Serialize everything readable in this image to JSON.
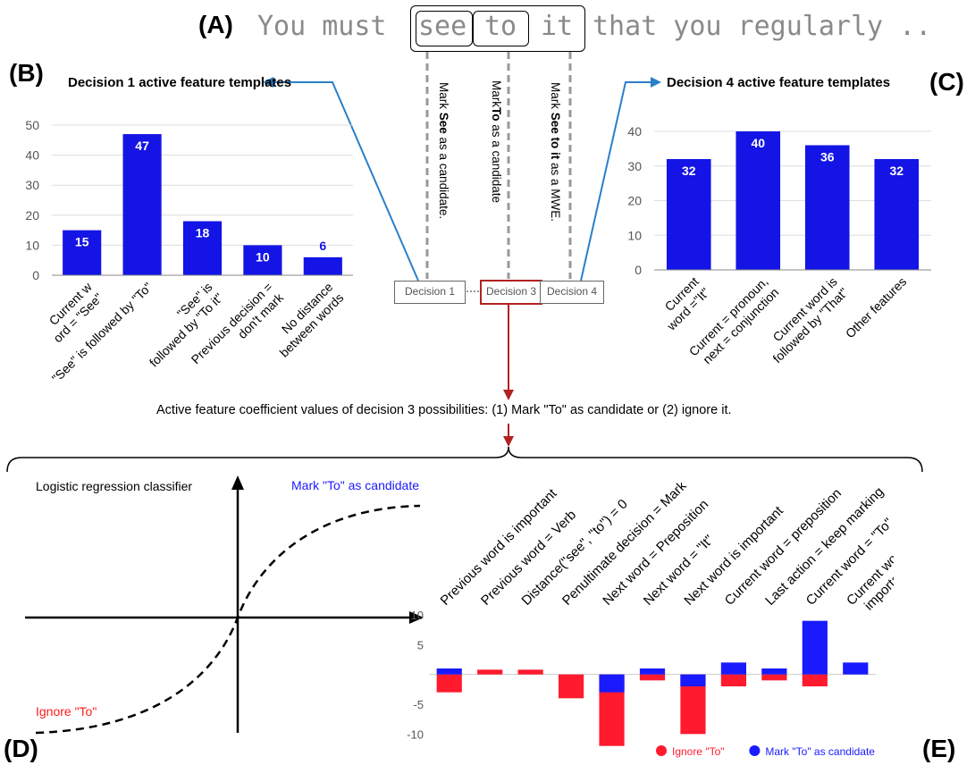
{
  "labels": {
    "A": "(A)",
    "B": "(B)",
    "C": "(C)",
    "D": "(D)",
    "E": "(E)"
  },
  "sentence": {
    "before": "You must",
    "w1": "see",
    "w2": "to",
    "w3": "it",
    "after": "that you regularly .."
  },
  "decision_labels": [
    "Decision 1",
    "Decision 3",
    "Decision 4"
  ],
  "decision_steps": [
    {
      "pre": "Mark ",
      "bold": "See",
      "post": " as a candidate."
    },
    {
      "pre": "Mark",
      "bold": "To",
      "post": " as a candidate"
    },
    {
      "pre": "Mark ",
      "bold": "See to it",
      "post": " as a MWE."
    }
  ],
  "caption": "Active feature coefficient values of decision 3 possibilities: (1) Mark \"To\" as candidate or (2) ignore it.",
  "logistic": {
    "title": "Logistic regression classifier",
    "mark_label": "Mark \"To\" as candidate",
    "ignore_label": "Ignore \"To\"",
    "colors": {
      "mark": "#1a1aff",
      "ignore": "#ff1a1a"
    }
  },
  "chart_data": [
    {
      "type": "bar",
      "title": "Decision 1 active feature templates",
      "categories": [
        "Current word = \"See\"",
        "\"See\" is followed by \"To\"",
        "\"See\" is followed by \"To it\"",
        "Previous decision = don't mark",
        "No distance between words"
      ],
      "values": [
        15,
        47,
        18,
        10,
        6
      ],
      "data_labels": [
        "15",
        "47",
        "18",
        "10",
        "6"
      ],
      "yticks": [
        "0",
        "10",
        "20",
        "30",
        "40",
        "50"
      ],
      "ylim": [
        0,
        50
      ],
      "color": "#1414e6"
    },
    {
      "type": "bar",
      "title": "Decision 4 active feature templates",
      "categories": [
        "Current word =\"It\"",
        "Current = pronoun, next = conjunction",
        "Current word is followed by \"That\"",
        "Other features"
      ],
      "values": [
        32,
        40,
        36,
        32
      ],
      "data_labels": [
        "32",
        "40",
        "36",
        "32"
      ],
      "yticks": [
        "0",
        "10",
        "20",
        "30",
        "40"
      ],
      "ylim": [
        0,
        40
      ],
      "color": "#1414e6"
    },
    {
      "type": "bar",
      "categories": [
        "Previous word is important",
        "Previous word = Verb",
        "Distance(\"see\", \"to\") = 0",
        "Penultimate decision = Mark",
        "Next word = Preposition",
        "Next word = \"It\"",
        "Next word is important",
        "Current word = preposition",
        "Last action = keep marking",
        "Current word = \"To\"",
        "Current word is important"
      ],
      "series": [
        {
          "name": "Ignore \"To\"",
          "color": "#ff1a2e",
          "values": [
            -3,
            0.8,
            0.8,
            -4,
            -12,
            -1,
            -10,
            -2,
            -1,
            -2,
            0
          ]
        },
        {
          "name": "Mark \"To\" as candidate",
          "color": "#1a1aff",
          "values": [
            1,
            0,
            0,
            0,
            -3,
            1,
            -2,
            2,
            1,
            9,
            2
          ]
        }
      ],
      "yticks": [
        "10",
        "5",
        "-5",
        "-10"
      ],
      "ylim": [
        -12.5,
        10
      ]
    }
  ]
}
